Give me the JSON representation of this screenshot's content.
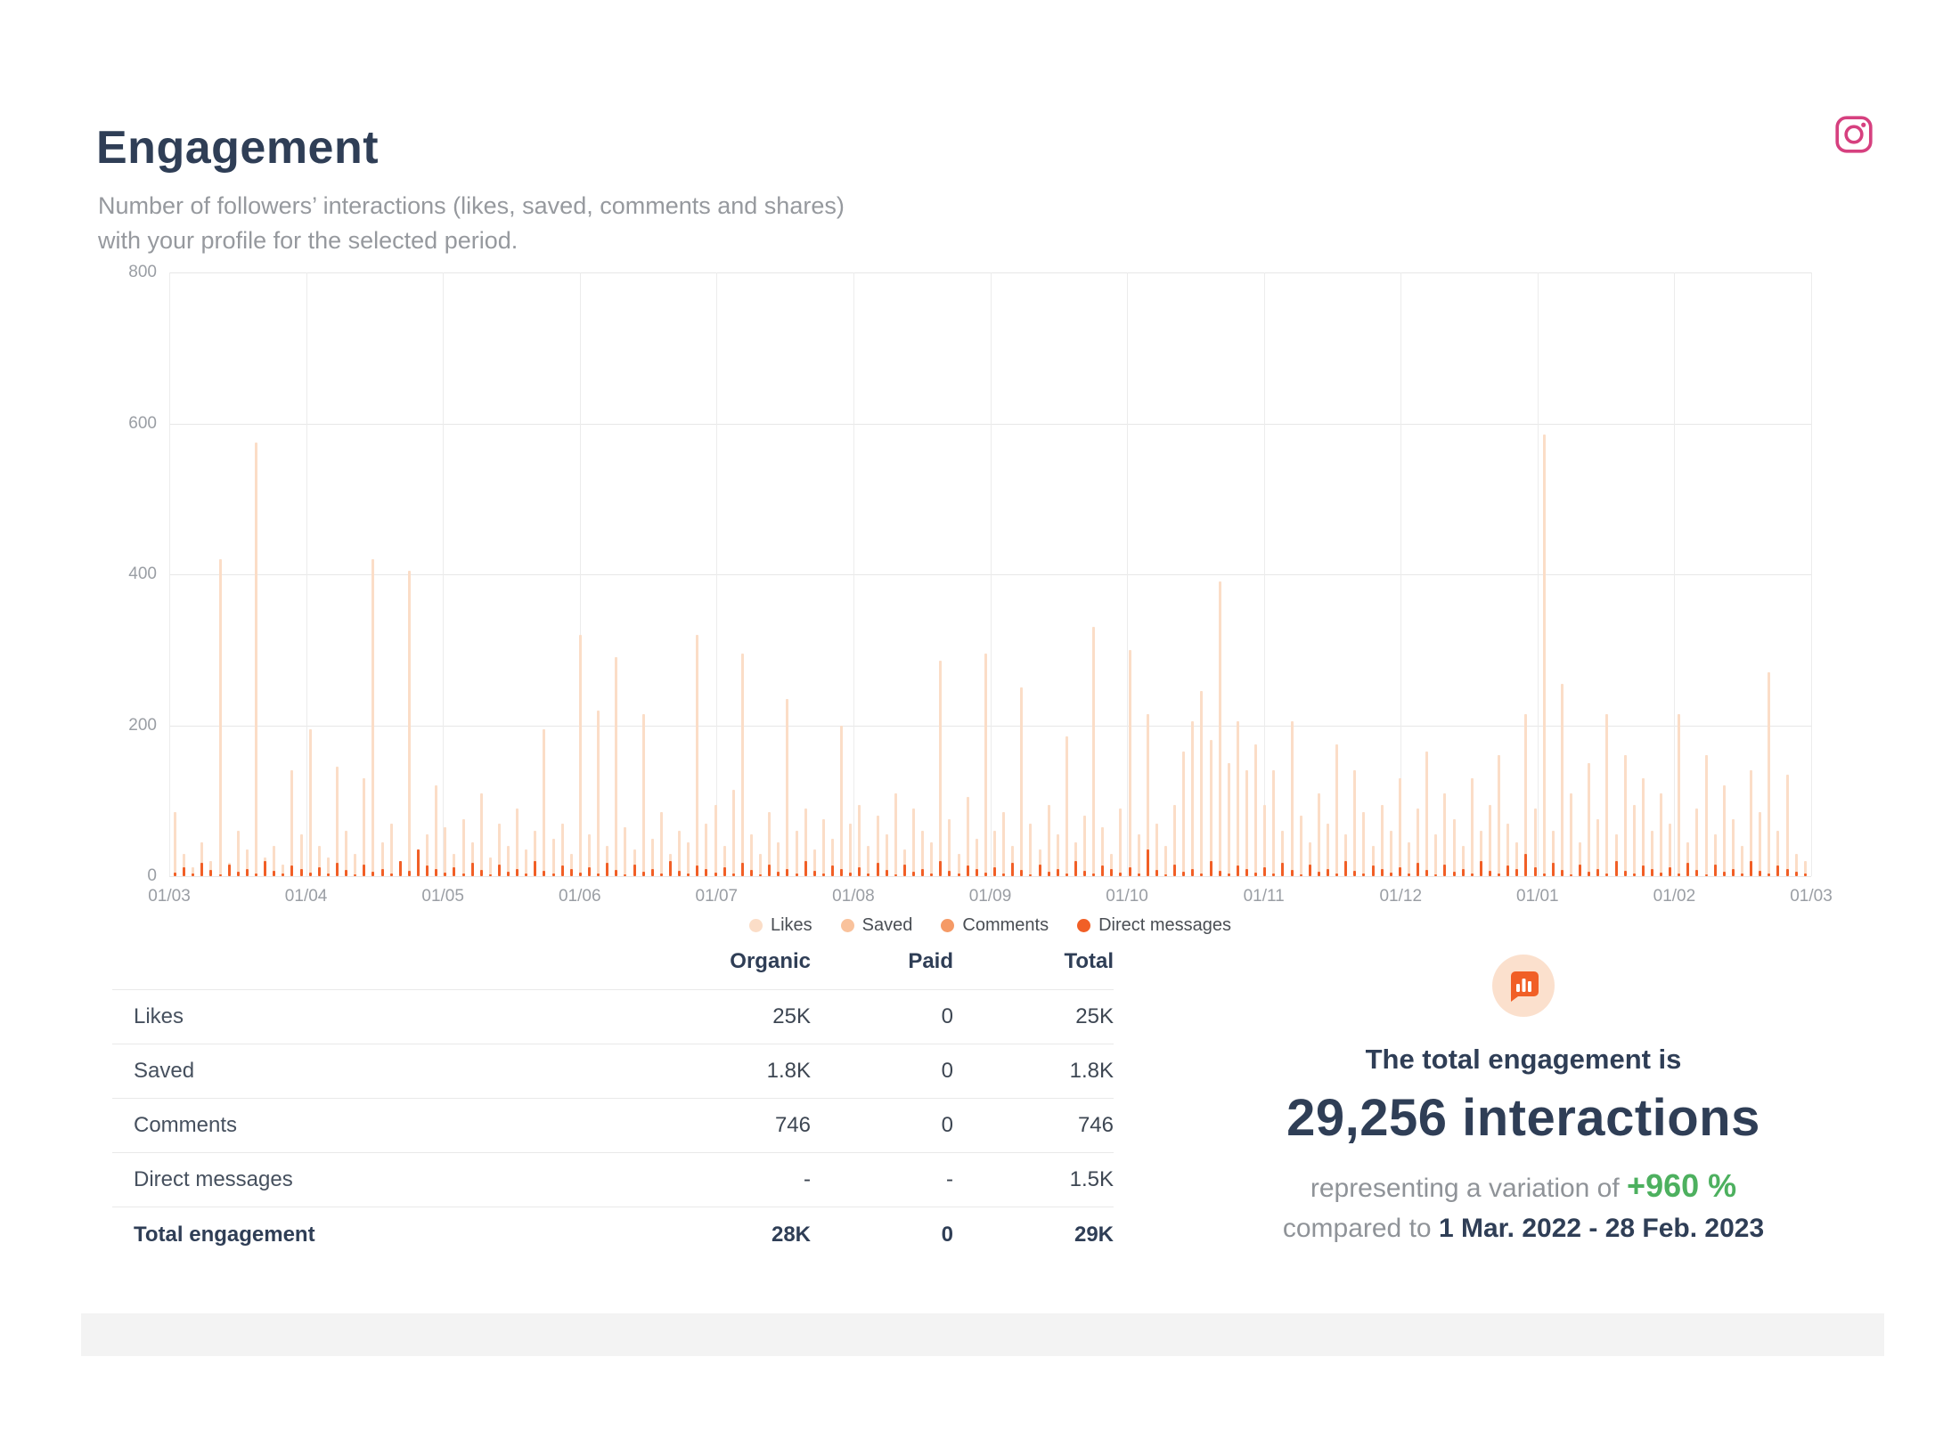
{
  "header": {
    "title": "Engagement",
    "subtitle_line1": "Number of followers’ interactions (likes, saved, comments and shares)",
    "subtitle_line2": "with your profile for the selected period.",
    "network_icon": "instagram"
  },
  "chart_data": {
    "type": "bar",
    "stacked": true,
    "title": "",
    "xlabel": "",
    "ylabel": "",
    "ylim": [
      0,
      800
    ],
    "grid": true,
    "legend_position": "bottom",
    "yticks_top_to_bottom": [
      "800",
      "600",
      "400",
      "200",
      "0"
    ],
    "x_labels": [
      "01/03",
      "01/04",
      "01/05",
      "01/06",
      "01/07",
      "01/08",
      "01/09",
      "01/10",
      "01/11",
      "01/12",
      "01/01",
      "01/02",
      "01/03"
    ],
    "legend": [
      {
        "label": "Likes",
        "color": "#fbddc7"
      },
      {
        "label": "Saved",
        "color": "#f9c29c"
      },
      {
        "label": "Comments",
        "color": "#f59a66"
      },
      {
        "label": "Direct messages",
        "color": "#f15f26"
      }
    ],
    "series": [
      {
        "name": "Total daily engagement (approx.)",
        "values": [
          85,
          30,
          12,
          45,
          20,
          420,
          18,
          60,
          35,
          575,
          25,
          40,
          15,
          140,
          55,
          195,
          40,
          25,
          145,
          60,
          30,
          130,
          420,
          45,
          70,
          20,
          405,
          35,
          55,
          120,
          65,
          30,
          75,
          45,
          110,
          25,
          70,
          40,
          90,
          35,
          60,
          195,
          50,
          70,
          30,
          320,
          55,
          220,
          40,
          290,
          65,
          35,
          215,
          50,
          85,
          30,
          60,
          45,
          320,
          70,
          95,
          40,
          115,
          295,
          55,
          30,
          85,
          45,
          235,
          60,
          90,
          35,
          75,
          50,
          200,
          70,
          95,
          40,
          80,
          55,
          110,
          35,
          90,
          60,
          45,
          285,
          75,
          30,
          105,
          50,
          295,
          60,
          85,
          40,
          250,
          70,
          35,
          95,
          55,
          185,
          45,
          80,
          330,
          65,
          30,
          90,
          300,
          55,
          215,
          70,
          40,
          95,
          165,
          205,
          245,
          180,
          390,
          150,
          205,
          140,
          175,
          95,
          140,
          60,
          205,
          80,
          45,
          110,
          70,
          175,
          55,
          140,
          85,
          40,
          95,
          60,
          130,
          45,
          90,
          165,
          55,
          110,
          75,
          40,
          130,
          60,
          95,
          160,
          70,
          45,
          215,
          90,
          585,
          60,
          255,
          110,
          45,
          150,
          75,
          215,
          55,
          160,
          95,
          130,
          60,
          110,
          70,
          215,
          45,
          90,
          160,
          55,
          120,
          75,
          40,
          140,
          85,
          270,
          60,
          135,
          30,
          20
        ]
      },
      {
        "name": "Direct messages segment (approx.)",
        "values": [
          5,
          12,
          3,
          18,
          8,
          2,
          15,
          6,
          10,
          4,
          20,
          7,
          3,
          14,
          9,
          5,
          12,
          3,
          18,
          8,
          2,
          15,
          6,
          10,
          4,
          20,
          7,
          45,
          14,
          9,
          5,
          12,
          3,
          18,
          8,
          2,
          15,
          6,
          10,
          4,
          20,
          7,
          3,
          14,
          9,
          5,
          12,
          3,
          18,
          8,
          2,
          15,
          6,
          10,
          4,
          20,
          7,
          3,
          14,
          9,
          5,
          12,
          3,
          18,
          8,
          2,
          15,
          6,
          10,
          4,
          20,
          7,
          3,
          14,
          9,
          5,
          12,
          3,
          18,
          8,
          2,
          15,
          6,
          10,
          4,
          20,
          7,
          3,
          14,
          9,
          5,
          12,
          3,
          18,
          8,
          2,
          15,
          6,
          10,
          4,
          20,
          7,
          3,
          14,
          9,
          5,
          12,
          3,
          35,
          8,
          2,
          15,
          6,
          10,
          4,
          20,
          7,
          3,
          14,
          9,
          5,
          12,
          3,
          18,
          8,
          2,
          15,
          6,
          10,
          4,
          20,
          7,
          3,
          14,
          9,
          5,
          12,
          3,
          18,
          8,
          2,
          15,
          6,
          10,
          4,
          20,
          7,
          3,
          14,
          9,
          30,
          12,
          3,
          18,
          8,
          2,
          15,
          6,
          10,
          4,
          20,
          7,
          3,
          14,
          9,
          5,
          12,
          3,
          18,
          8,
          2,
          15,
          6,
          10,
          4,
          20,
          7,
          3,
          14,
          9,
          6,
          3
        ]
      }
    ]
  },
  "table": {
    "columns": {
      "organic": "Organic",
      "paid": "Paid",
      "total": "Total"
    },
    "rows": [
      {
        "label": "Likes",
        "organic": "25K",
        "paid": "0",
        "total": "25K"
      },
      {
        "label": "Saved",
        "organic": "1.8K",
        "paid": "0",
        "total": "1.8K"
      },
      {
        "label": "Comments",
        "organic": "746",
        "paid": "0",
        "total": "746"
      },
      {
        "label": "Direct messages",
        "organic": "-",
        "paid": "-",
        "total": "1.5K"
      }
    ],
    "footer": {
      "label": "Total engagement",
      "organic": "28K",
      "paid": "0",
      "total": "29K"
    }
  },
  "summary": {
    "icon": "chart-speech-bubble",
    "lead": "The total engagement is",
    "headline": "29,256 interactions",
    "variation_prefix": "representing a variation of",
    "variation_value": "+960 %",
    "compare_prefix": "compared to",
    "compare_range": "1 Mar. 2022 - 28 Feb. 2023",
    "green": "#4db05f",
    "orange": "#f15f26"
  }
}
